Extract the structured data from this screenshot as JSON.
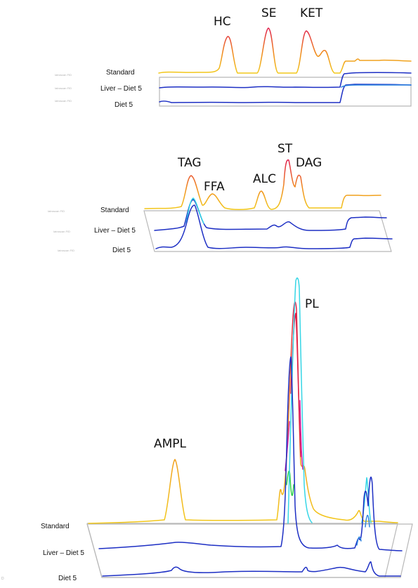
{
  "colors": {
    "standard_base": "#f2c81a",
    "standard_peak": "#e01d4b",
    "standard_mid": "#f08a1e",
    "sample_dark": "#1d2fc4",
    "sample_light": "#2d86e0",
    "cyan": "#35d6e6",
    "magenta": "#d020a0",
    "green": "#2ed04a"
  },
  "chart_data": [
    {
      "type": "line",
      "panel": "neutral-lipids-1",
      "series": [
        {
          "name": "Standard",
          "instrument_label": "Iatroscan FID"
        },
        {
          "name": "Liver – Diet 5",
          "instrument_label": "Iatroscan FID"
        },
        {
          "name": "Diet 5",
          "instrument_label": "Iatroscan FID"
        }
      ],
      "peaks": [
        "HC",
        "SE",
        "KET"
      ],
      "grid": false
    },
    {
      "type": "line",
      "panel": "neutral-lipids-2",
      "series": [
        {
          "name": "Standard",
          "instrument_label": "Iatroscan FID"
        },
        {
          "name": "Liver – Diet 5",
          "instrument_label": "Iatroscan FID"
        },
        {
          "name": "Diet 5",
          "instrument_label": "Iatroscan FID"
        }
      ],
      "peaks": [
        "TAG",
        "FFA",
        "ALC",
        "ST",
        "DAG"
      ],
      "grid": false
    },
    {
      "type": "line",
      "panel": "polar-lipids",
      "series": [
        {
          "name": "Standard"
        },
        {
          "name": "Liver – Diet 5"
        },
        {
          "name": "Diet 5",
          "instrument_label": "D"
        }
      ],
      "peaks": [
        "AMPL",
        "PL"
      ],
      "grid": false
    }
  ]
}
